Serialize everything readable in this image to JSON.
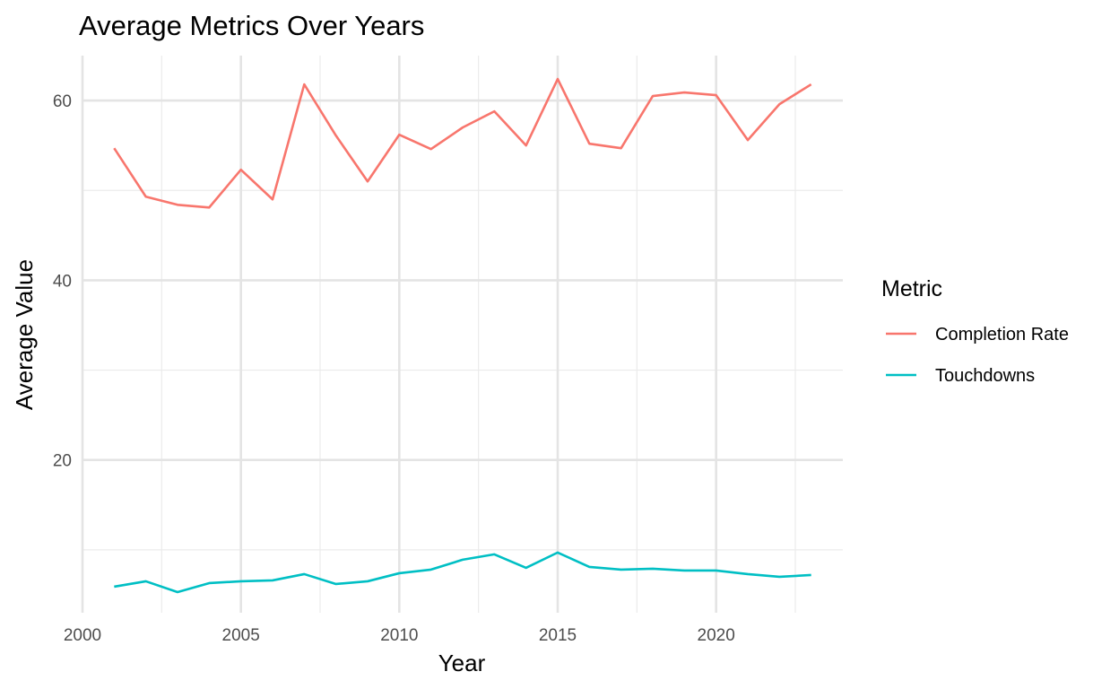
{
  "chart_data": {
    "type": "line",
    "title": "Average Metrics Over Years",
    "xlabel": "Year",
    "ylabel": "Average Value",
    "xlim": [
      2000,
      2024
    ],
    "ylim": [
      3,
      65
    ],
    "x_ticks": [
      2000,
      2005,
      2010,
      2015,
      2020
    ],
    "y_ticks": [
      20,
      40,
      60
    ],
    "grid": true,
    "legend": {
      "title": "Metric",
      "position": "right"
    },
    "x": [
      2001,
      2002,
      2003,
      2004,
      2005,
      2006,
      2007,
      2008,
      2009,
      2010,
      2011,
      2012,
      2013,
      2014,
      2015,
      2016,
      2017,
      2018,
      2019,
      2020,
      2021,
      2022,
      2023
    ],
    "series": [
      {
        "name": "Completion Rate",
        "color": "#F8766D",
        "values": [
          54.7,
          49.3,
          48.4,
          48.1,
          52.3,
          49.0,
          61.8,
          56.1,
          51.0,
          56.2,
          54.6,
          57.0,
          58.8,
          55.0,
          62.4,
          55.2,
          54.7,
          60.5,
          60.9,
          60.6,
          55.6,
          59.6,
          61.8
        ]
      },
      {
        "name": "Touchdowns",
        "color": "#00BFC4",
        "values": [
          5.9,
          6.5,
          5.3,
          6.3,
          6.5,
          6.6,
          7.3,
          6.2,
          6.5,
          7.4,
          7.8,
          8.9,
          9.5,
          8.0,
          9.7,
          8.1,
          7.8,
          7.9,
          7.7,
          7.7,
          7.3,
          7.0,
          7.2
        ]
      }
    ]
  }
}
